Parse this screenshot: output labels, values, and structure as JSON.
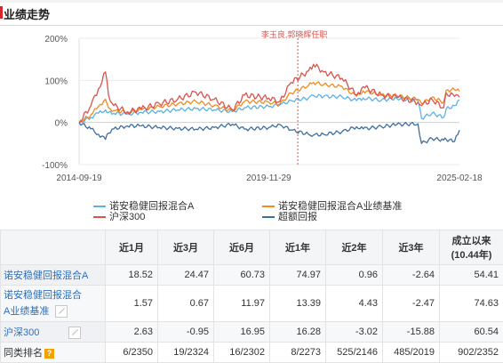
{
  "section_title": "业绩走势",
  "manager_change": "李玉良,郭晓辉任职",
  "chart_data": {
    "type": "line",
    "title": "",
    "xlabel": "",
    "ylabel": "",
    "ylim": [
      -100,
      200
    ],
    "yticks": [
      "200%",
      "100%",
      "0%",
      "-100%"
    ],
    "xticks": [
      "2014-09-19",
      "2019-11-29",
      "2025-02-18"
    ],
    "x_range": [
      "2014-09-19",
      "2025-02-18"
    ],
    "grid": "horizontal",
    "legend": "bottom",
    "annotation_date": "2020-09-15",
    "series": [
      {
        "name": "诺安稳健回报混合A",
        "color": "#5eb0e5",
        "points": [
          [
            "2014-09-19",
            0
          ],
          [
            "2015-01-15",
            12
          ],
          [
            "2015-04-01",
            22
          ],
          [
            "2015-06-10",
            30
          ],
          [
            "2015-07-10",
            24
          ],
          [
            "2015-09-01",
            22
          ],
          [
            "2016-01-15",
            20
          ],
          [
            "2016-06-01",
            24
          ],
          [
            "2016-12-01",
            26
          ],
          [
            "2017-06-01",
            30
          ],
          [
            "2017-12-01",
            33
          ],
          [
            "2018-06-01",
            30
          ],
          [
            "2018-12-01",
            26
          ],
          [
            "2019-04-01",
            35
          ],
          [
            "2019-11-29",
            38
          ],
          [
            "2020-03-20",
            42
          ],
          [
            "2020-07-10",
            52
          ],
          [
            "2020-12-31",
            58
          ],
          [
            "2021-02-18",
            64
          ],
          [
            "2021-06-01",
            62
          ],
          [
            "2021-12-01",
            61
          ],
          [
            "2022-04-26",
            52
          ],
          [
            "2022-07-01",
            58
          ],
          [
            "2022-12-31",
            53
          ],
          [
            "2023-06-01",
            58
          ],
          [
            "2023-12-31",
            52
          ],
          [
            "2024-02-05",
            10
          ],
          [
            "2024-05-20",
            22
          ],
          [
            "2024-09-13",
            12
          ],
          [
            "2024-10-08",
            32
          ],
          [
            "2024-12-31",
            40
          ],
          [
            "2025-02-18",
            54
          ]
        ]
      },
      {
        "name": "诺安稳健回报混合A业绩基准",
        "color": "#f28a1e",
        "points": [
          [
            "2014-09-19",
            0
          ],
          [
            "2015-01-15",
            18
          ],
          [
            "2015-04-01",
            38
          ],
          [
            "2015-06-10",
            55
          ],
          [
            "2015-07-10",
            35
          ],
          [
            "2015-09-01",
            28
          ],
          [
            "2016-01-15",
            25
          ],
          [
            "2016-06-01",
            30
          ],
          [
            "2016-12-01",
            38
          ],
          [
            "2017-06-01",
            44
          ],
          [
            "2017-12-01",
            50
          ],
          [
            "2018-06-01",
            40
          ],
          [
            "2018-12-01",
            28
          ],
          [
            "2019-04-01",
            50
          ],
          [
            "2019-11-29",
            48
          ],
          [
            "2020-03-20",
            44
          ],
          [
            "2020-07-10",
            70
          ],
          [
            "2020-12-31",
            88
          ],
          [
            "2021-02-18",
            95
          ],
          [
            "2021-06-01",
            90
          ],
          [
            "2021-12-01",
            85
          ],
          [
            "2022-04-26",
            62
          ],
          [
            "2022-07-01",
            75
          ],
          [
            "2022-12-31",
            65
          ],
          [
            "2023-06-01",
            64
          ],
          [
            "2023-12-31",
            55
          ],
          [
            "2024-02-05",
            45
          ],
          [
            "2024-05-20",
            60
          ],
          [
            "2024-09-13",
            48
          ],
          [
            "2024-10-08",
            76
          ],
          [
            "2024-12-31",
            78
          ],
          [
            "2025-02-18",
            74
          ]
        ]
      },
      {
        "name": "沪深300",
        "color": "#d9534f",
        "points": [
          [
            "2014-09-19",
            0
          ],
          [
            "2015-01-15",
            40
          ],
          [
            "2015-04-01",
            80
          ],
          [
            "2015-06-10",
            120
          ],
          [
            "2015-07-10",
            65
          ],
          [
            "2015-09-01",
            40
          ],
          [
            "2016-01-15",
            25
          ],
          [
            "2016-06-01",
            32
          ],
          [
            "2016-12-01",
            45
          ],
          [
            "2017-06-01",
            55
          ],
          [
            "2017-12-01",
            72
          ],
          [
            "2018-06-01",
            55
          ],
          [
            "2018-12-01",
            30
          ],
          [
            "2019-04-01",
            65
          ],
          [
            "2019-11-29",
            58
          ],
          [
            "2020-03-20",
            50
          ],
          [
            "2020-07-10",
            95
          ],
          [
            "2020-12-31",
            122
          ],
          [
            "2021-02-18",
            138
          ],
          [
            "2021-06-01",
            120
          ],
          [
            "2021-12-01",
            105
          ],
          [
            "2022-04-26",
            65
          ],
          [
            "2022-07-01",
            85
          ],
          [
            "2022-12-31",
            65
          ],
          [
            "2023-06-01",
            60
          ],
          [
            "2023-12-31",
            48
          ],
          [
            "2024-02-05",
            40
          ],
          [
            "2024-05-20",
            55
          ],
          [
            "2024-09-13",
            35
          ],
          [
            "2024-10-08",
            70
          ],
          [
            "2024-12-31",
            62
          ],
          [
            "2025-02-18",
            60
          ]
        ]
      },
      {
        "name": "超额回报",
        "color": "#3f6e9e",
        "points": [
          [
            "2014-09-19",
            0
          ],
          [
            "2015-01-15",
            -15
          ],
          [
            "2015-04-01",
            -28
          ],
          [
            "2015-06-10",
            -40
          ],
          [
            "2015-07-10",
            -25
          ],
          [
            "2015-09-01",
            -15
          ],
          [
            "2016-01-15",
            -8
          ],
          [
            "2016-06-01",
            -8
          ],
          [
            "2016-12-01",
            -12
          ],
          [
            "2017-06-01",
            -14
          ],
          [
            "2017-12-01",
            -16
          ],
          [
            "2018-06-01",
            -12
          ],
          [
            "2018-12-01",
            -4
          ],
          [
            "2019-04-01",
            -16
          ],
          [
            "2019-11-29",
            -12
          ],
          [
            "2020-03-20",
            -5
          ],
          [
            "2020-07-10",
            -18
          ],
          [
            "2020-12-31",
            -28
          ],
          [
            "2021-02-18",
            -30
          ],
          [
            "2021-06-01",
            -28
          ],
          [
            "2021-12-01",
            -22
          ],
          [
            "2022-04-26",
            -10
          ],
          [
            "2022-07-01",
            -15
          ],
          [
            "2022-12-31",
            -10
          ],
          [
            "2023-06-01",
            -5
          ],
          [
            "2023-12-31",
            -3
          ],
          [
            "2024-02-05",
            -50
          ],
          [
            "2024-05-20",
            -38
          ],
          [
            "2024-09-13",
            -42
          ],
          [
            "2024-10-08",
            -40
          ],
          [
            "2024-12-31",
            -45
          ],
          [
            "2025-02-18",
            -18
          ]
        ]
      }
    ]
  },
  "table": {
    "headers": [
      "",
      "近1月",
      "近3月",
      "近6月",
      "近1年",
      "近2年",
      "近3年",
      "成立以来",
      "(10.44年)"
    ],
    "rows": [
      {
        "name": "诺安稳健回报混合A",
        "values": [
          "18.52",
          "24.47",
          "60.73",
          "74.97",
          "0.96",
          "-2.64",
          "54.41"
        ]
      },
      {
        "name": "诺安稳健回报混合",
        "name2": "A业绩基准",
        "values": [
          "1.57",
          "0.67",
          "11.97",
          "13.39",
          "4.43",
          "-2.47",
          "74.63"
        ]
      },
      {
        "name": "沪深300",
        "values": [
          "2.63",
          "-0.95",
          "16.95",
          "16.28",
          "-3.02",
          "-15.88",
          "60.54"
        ]
      },
      {
        "name": "同类排名",
        "values": [
          "6/2350",
          "19/2324",
          "16/2302",
          "8/2273",
          "525/2146",
          "485/2019",
          "902/2352"
        ]
      }
    ],
    "help_icon": "?"
  }
}
